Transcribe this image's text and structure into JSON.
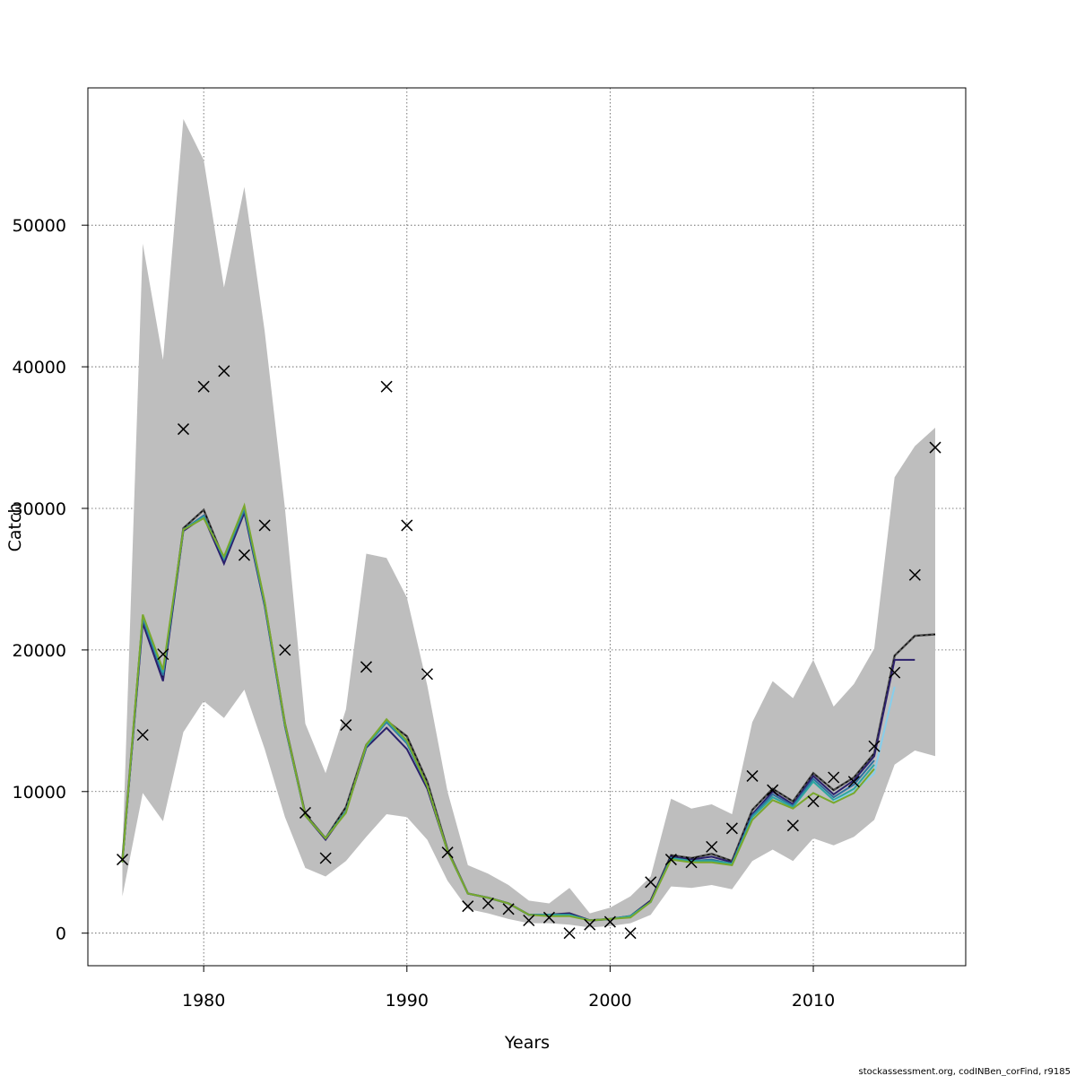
{
  "chart_data": {
    "type": "line",
    "title": "",
    "xlabel": "Years",
    "ylabel": "Catch",
    "xlim": [
      1974.3,
      2017.5
    ],
    "ylim": [
      -2300,
      59700
    ],
    "x_ticks": [
      1980,
      1990,
      2000,
      2010
    ],
    "y_ticks": [
      0,
      10000,
      20000,
      30000,
      40000,
      50000
    ],
    "grid": true,
    "legend": "none",
    "credit": "stockassessment.org, codINBen_corFind, r9185",
    "confidence_band": {
      "color": "#bebebe",
      "x": [
        1976,
        1977,
        1978,
        1979,
        1980,
        1981,
        1982,
        1983,
        1984,
        1985,
        1986,
        1987,
        1988,
        1989,
        1990,
        1991,
        1992,
        1993,
        1994,
        1995,
        1996,
        1997,
        1998,
        1999,
        2000,
        2001,
        2002,
        2003,
        2004,
        2005,
        2006,
        2007,
        2008,
        2009,
        2010,
        2011,
        2012,
        2013,
        2014,
        2015,
        2016
      ],
      "upper": [
        5500,
        48700,
        40500,
        57500,
        54600,
        45600,
        52700,
        42500,
        30000,
        14800,
        11300,
        15800,
        26800,
        26500,
        23700,
        17500,
        10000,
        4800,
        4200,
        3400,
        2300,
        2100,
        3200,
        1400,
        1800,
        2600,
        4000,
        9500,
        8800,
        9100,
        8400,
        14900,
        17800,
        16600,
        19300,
        16000,
        17600,
        20100,
        32200,
        34400,
        35700
      ],
      "lower": [
        2600,
        9900,
        7900,
        14200,
        16400,
        15200,
        17200,
        13000,
        8200,
        4600,
        4000,
        5100,
        6800,
        8400,
        8200,
        6600,
        3700,
        1700,
        1400,
        1000,
        700,
        700,
        600,
        400,
        500,
        700,
        1300,
        3300,
        3200,
        3400,
        3100,
        5100,
        5900,
        5100,
        6700,
        6200,
        6800,
        8000,
        11900,
        12900,
        12500
      ]
    },
    "observed": {
      "marker": "x",
      "x": [
        1976,
        1977,
        1978,
        1979,
        1980,
        1981,
        1982,
        1983,
        1984,
        1985,
        1986,
        1987,
        1988,
        1989,
        1990,
        1991,
        1992,
        1993,
        1994,
        1995,
        1996,
        1997,
        1998,
        1999,
        2000,
        2001,
        2002,
        2003,
        2004,
        2005,
        2006,
        2007,
        2008,
        2009,
        2010,
        2011,
        2012,
        2013,
        2014,
        2015,
        2016
      ],
      "y": [
        5200,
        14000,
        19700,
        35600,
        38600,
        39700,
        26700,
        28800,
        20000,
        8500,
        5300,
        14700,
        18800,
        38600,
        28800,
        18300,
        5700,
        1900,
        2100,
        1700,
        900,
        1100,
        0,
        600,
        800,
        0,
        3600,
        5200,
        5000,
        6100,
        7400,
        11100,
        10100,
        7600,
        9300,
        11000,
        10700,
        13200,
        18400,
        25300,
        34300
      ]
    },
    "series": [
      {
        "color": "#4d4d4d",
        "dash": true,
        "x": [
          1976,
          1977,
          1978,
          1979,
          1980,
          1981,
          1982,
          1983,
          1984,
          1985,
          1986,
          1987,
          1988,
          1989,
          1990,
          1991,
          1992,
          1993,
          1994,
          1995,
          1996,
          1997,
          1998,
          1999,
          2000,
          2001,
          2002,
          2003,
          2004,
          2005,
          2006,
          2007,
          2008,
          2009,
          2010,
          2011,
          2012,
          2013,
          2014,
          2015,
          2016
        ],
        "values": [
          5200,
          22200,
          18000,
          28600,
          29900,
          26400,
          30000,
          23300,
          14800,
          8400,
          6700,
          8900,
          13300,
          15000,
          13900,
          10700,
          5900,
          2800,
          2500,
          2100,
          1300,
          1300,
          1400,
          900,
          1000,
          1200,
          2300,
          5500,
          5300,
          5600,
          5100,
          8700,
          10200,
          9300,
          11300,
          10100,
          11000,
          12700,
          19600,
          21000,
          21100
        ]
      },
      {
        "color": "#2b1f6b",
        "x": [
          1976,
          1977,
          1978,
          1979,
          1980,
          1981,
          1982,
          1983,
          1984,
          1985,
          1986,
          1987,
          1988,
          1989,
          1990,
          1991,
          1992,
          1993,
          1994,
          1995,
          1996,
          1997,
          1998,
          1999,
          2000,
          2001,
          2002,
          2003,
          2004,
          2005,
          2006,
          2007,
          2008,
          2009,
          2010,
          2011,
          2012,
          2013,
          2014,
          2015
        ],
        "values": [
          5000,
          21900,
          17800,
          28400,
          29400,
          26100,
          29700,
          23100,
          14600,
          8300,
          6600,
          8600,
          13100,
          14500,
          13000,
          10200,
          5800,
          2800,
          2500,
          2100,
          1300,
          1300,
          1400,
          900,
          1000,
          1200,
          2300,
          5400,
          5200,
          5400,
          5000,
          8400,
          10000,
          9100,
          11100,
          9800,
          10800,
          12500,
          19300,
          19300
        ]
      },
      {
        "color": "#2f6f9e",
        "x": [
          1976,
          1977,
          1978,
          1979,
          1980,
          1981,
          1982,
          1983,
          1984,
          1985,
          1986,
          1987,
          1988,
          1989,
          1990,
          1991,
          1992,
          1993,
          1994,
          1995,
          1996,
          1997,
          1998,
          1999,
          2000,
          2001,
          2002,
          2003,
          2004,
          2005,
          2006,
          2007,
          2008,
          2009,
          2010,
          2011,
          2012,
          2013
        ],
        "values": [
          5000,
          22200,
          18200,
          28500,
          29500,
          26400,
          29900,
          23200,
          14700,
          8300,
          6700,
          8600,
          13200,
          14900,
          13400,
          10400,
          5800,
          2800,
          2500,
          2100,
          1300,
          1300,
          1300,
          900,
          1000,
          1200,
          2200,
          5300,
          5100,
          5200,
          4900,
          8300,
          9800,
          9000,
          10900,
          9600,
          10500,
          12200
        ]
      },
      {
        "color": "#2ca6a0",
        "x": [
          1976,
          1977,
          1978,
          1979,
          1980,
          1981,
          1982,
          1983,
          1984,
          1985,
          1986,
          1987,
          1988,
          1989,
          1990,
          1991,
          1992,
          1993,
          1994,
          1995,
          1996,
          1997,
          1998,
          1999,
          2000,
          2001,
          2002,
          2003,
          2004,
          2005,
          2006,
          2007,
          2008,
          2009,
          2010,
          2011,
          2012,
          2013
        ],
        "values": [
          5000,
          22400,
          18400,
          28500,
          29400,
          26500,
          30100,
          23300,
          14700,
          8300,
          6700,
          8600,
          13200,
          15000,
          13500,
          10400,
          5800,
          2800,
          2500,
          2100,
          1300,
          1300,
          1300,
          900,
          1000,
          1200,
          2200,
          5300,
          5100,
          5100,
          4900,
          8200,
          9600,
          8900,
          10700,
          9400,
          10200,
          11900
        ]
      },
      {
        "color": "#87ceeb",
        "x": [
          2011,
          2012,
          2013,
          2014
        ],
        "values": [
          9300,
          10000,
          11300,
          17400
        ]
      },
      {
        "color": "#7aa82c",
        "x": [
          1976,
          1977,
          1978,
          1979,
          1980,
          1981,
          1982,
          1983,
          1984,
          1985,
          1986,
          1987,
          1988,
          1989,
          1990,
          1991,
          1992,
          1993,
          1994,
          1995,
          1996,
          1997,
          1998,
          1999,
          2000,
          2001,
          2002,
          2003,
          2004,
          2005,
          2006,
          2007,
          2008,
          2009,
          2010,
          2011,
          2012,
          2013
        ],
        "values": [
          5000,
          22500,
          18600,
          28500,
          29300,
          26600,
          30200,
          23400,
          14800,
          8300,
          6700,
          8500,
          13300,
          15100,
          13600,
          10400,
          5800,
          2800,
          2500,
          2100,
          1300,
          1200,
          1200,
          900,
          1000,
          1100,
          2200,
          5200,
          5000,
          5000,
          4800,
          8000,
          9400,
          8800,
          9900,
          9200,
          9900,
          11600
        ]
      }
    ]
  }
}
